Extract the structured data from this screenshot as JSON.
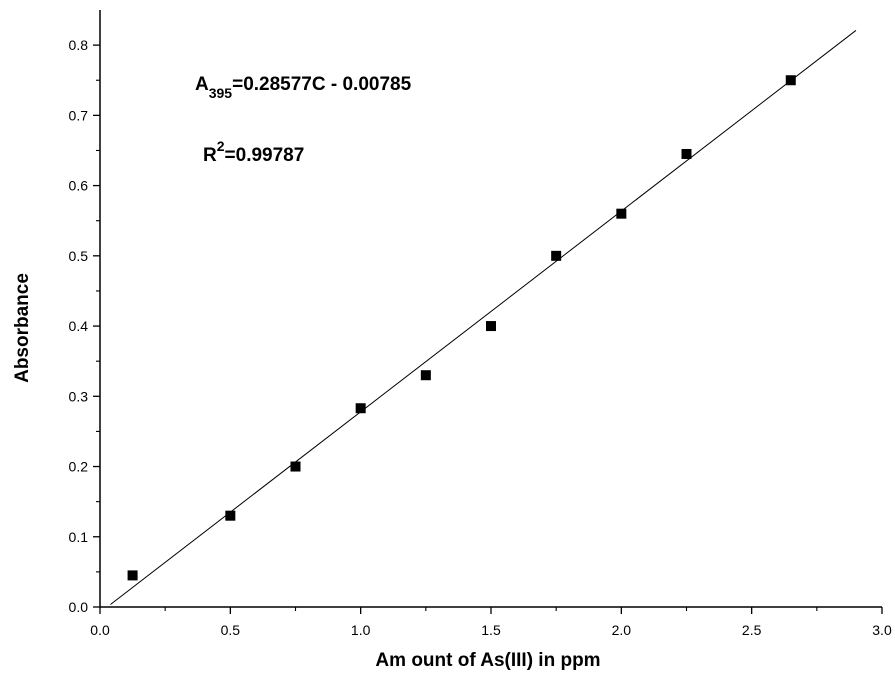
{
  "chart_data": {
    "type": "scatter",
    "xlabel": "Am ount of As(III) in ppm",
    "ylabel": "Absorbance",
    "xlim": [
      0,
      3.0
    ],
    "ylim": [
      0,
      0.85
    ],
    "x_ticks": [
      "0.0",
      "0.5",
      "1.0",
      "1.5",
      "2.0",
      "2.5",
      "3.0"
    ],
    "y_ticks": [
      "0.0",
      "0.1",
      "0.2",
      "0.3",
      "0.4",
      "0.5",
      "0.6",
      "0.7",
      "0.8"
    ],
    "grid": false,
    "points": [
      {
        "x": 0.125,
        "y": 0.045
      },
      {
        "x": 0.5,
        "y": 0.13
      },
      {
        "x": 0.75,
        "y": 0.2
      },
      {
        "x": 1.0,
        "y": 0.283
      },
      {
        "x": 1.25,
        "y": 0.33
      },
      {
        "x": 1.5,
        "y": 0.4
      },
      {
        "x": 1.75,
        "y": 0.5
      },
      {
        "x": 2.0,
        "y": 0.56
      },
      {
        "x": 2.25,
        "y": 0.645
      },
      {
        "x": 2.65,
        "y": 0.75
      }
    ],
    "fit_line": {
      "slope": 0.28577,
      "intercept": -0.00785,
      "x_start": 0.04,
      "x_end": 2.9
    },
    "annotations": {
      "equation_main": "A",
      "equation_sub": "395",
      "equation_rest": "=0.28577C - 0.00785",
      "r2_main": "R",
      "r2_sup": "2",
      "r2_rest": "=0.99787"
    },
    "colors": {
      "marker": "#000000",
      "line": "#000000",
      "axis": "#000000"
    }
  }
}
